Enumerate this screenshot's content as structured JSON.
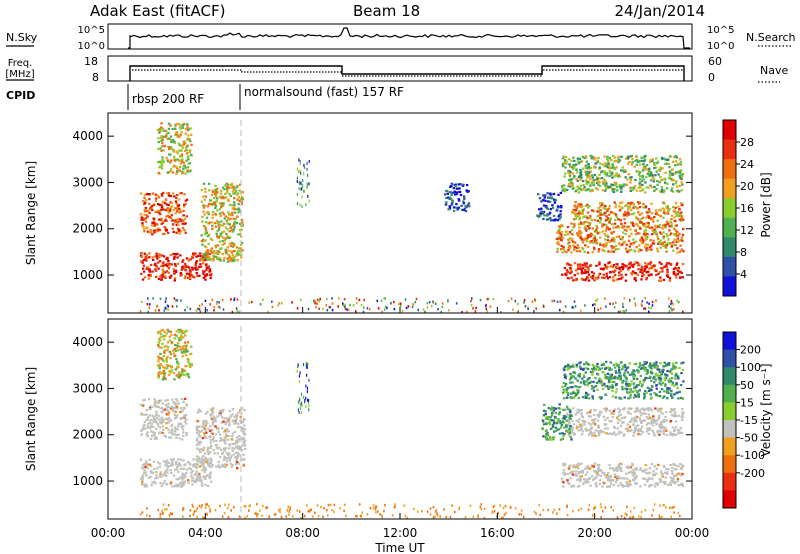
{
  "header": {
    "station": "Adak East (fitACF)",
    "beam": "Beam 18",
    "date": "24/Jan/2014"
  },
  "top_panels": {
    "nsky": {
      "label": "N.Sky",
      "ticks": [
        "10^5",
        "10^0"
      ]
    },
    "nsearch": {
      "label": "N.Search",
      "ticks": [
        "10^5",
        "10^0"
      ]
    },
    "freq": {
      "label_line1": "Freq.",
      "label_line2": "[MHz]",
      "ticks": [
        "18",
        "8"
      ]
    },
    "nave": {
      "label": "Nave",
      "ticks": [
        "60",
        "0"
      ]
    },
    "cpid": {
      "label": "CPID",
      "modes": [
        {
          "name": "rbsp 200 RF",
          "start_hour": 1.25
        },
        {
          "name": "normalsound (fast) 157 RF",
          "start_hour": 5.95
        }
      ]
    }
  },
  "colors": {
    "scale": [
      "#1010d8",
      "#3050a8",
      "#2e8a6a",
      "#50b050",
      "#88cc30",
      "#f0a020",
      "#f07010",
      "#e83010",
      "#e00000"
    ],
    "ground_scatter": "#c0c0bc"
  },
  "chart_data": [
    {
      "type": "heatmap",
      "name": "power",
      "xlabel": "",
      "ylabel": "Slant Range [km]",
      "xlim": [
        0,
        24
      ],
      "ylim": [
        180,
        4500
      ],
      "y_ticks": [
        "1000",
        "2000",
        "3000",
        "4000"
      ],
      "colorbar": {
        "label": "Power [dB]",
        "ticks": [
          "4",
          "8",
          "12",
          "16",
          "20",
          "24",
          "28"
        ],
        "range": [
          0,
          32
        ]
      },
      "regions": [
        {
          "t0": 1.3,
          "t1": 4.2,
          "r0": 900,
          "r1": 1500,
          "level": 8
        },
        {
          "t0": 1.3,
          "t1": 3.2,
          "r0": 1900,
          "r1": 2800,
          "level": 7
        },
        {
          "t0": 2.0,
          "t1": 3.4,
          "r0": 3200,
          "r1": 4300,
          "level": 5
        },
        {
          "t0": 3.8,
          "t1": 5.5,
          "r0": 1300,
          "r1": 3000,
          "level": 5
        },
        {
          "t0": 18.6,
          "t1": 23.6,
          "r0": 900,
          "r1": 1300,
          "level": 8
        },
        {
          "t0": 18.4,
          "t1": 23.6,
          "r0": 1500,
          "r1": 2100,
          "level": 6
        },
        {
          "t0": 19.0,
          "t1": 23.6,
          "r0": 2100,
          "r1": 2600,
          "level": 6
        },
        {
          "t0": 18.6,
          "t1": 23.6,
          "r0": 2800,
          "r1": 3600,
          "level": 4
        },
        {
          "t0": 17.6,
          "t1": 18.6,
          "r0": 2200,
          "r1": 2800,
          "level": 1
        },
        {
          "t0": 13.8,
          "t1": 14.8,
          "r0": 2400,
          "r1": 3000,
          "level": 1
        }
      ]
    },
    {
      "type": "heatmap",
      "name": "velocity",
      "xlabel": "Time UT",
      "ylabel": "Slant Range [km]",
      "xlim": [
        0,
        24
      ],
      "ylim": [
        180,
        4500
      ],
      "x_ticks": [
        "00:00",
        "04:00",
        "08:00",
        "12:00",
        "16:00",
        "20:00",
        "00:00"
      ],
      "y_ticks": [
        "1000",
        "2000",
        "3000",
        "4000"
      ],
      "colorbar": {
        "label": "Velocity [m s⁻¹]",
        "ticks": [
          "200",
          "100",
          "50",
          "15",
          "-15",
          "-50",
          "-100",
          "-200"
        ]
      },
      "regions": [
        {
          "t0": 1.3,
          "t1": 4.2,
          "r0": 900,
          "r1": 1500,
          "level": 9
        },
        {
          "t0": 1.3,
          "t1": 3.2,
          "r0": 1900,
          "r1": 2800,
          "level": 9
        },
        {
          "t0": 3.6,
          "t1": 5.6,
          "r0": 1300,
          "r1": 2600,
          "level": 9
        },
        {
          "t0": 2.0,
          "t1": 3.4,
          "r0": 3200,
          "r1": 4300,
          "level": 5
        },
        {
          "t0": 18.6,
          "t1": 23.6,
          "r0": 900,
          "r1": 1400,
          "level": 9
        },
        {
          "t0": 18.8,
          "t1": 23.6,
          "r0": 2000,
          "r1": 2600,
          "level": 9
        },
        {
          "t0": 18.6,
          "t1": 23.6,
          "r0": 2800,
          "r1": 3600,
          "level": 3
        },
        {
          "t0": 17.8,
          "t1": 19.0,
          "r0": 1900,
          "r1": 2700,
          "level": 3
        }
      ]
    }
  ]
}
